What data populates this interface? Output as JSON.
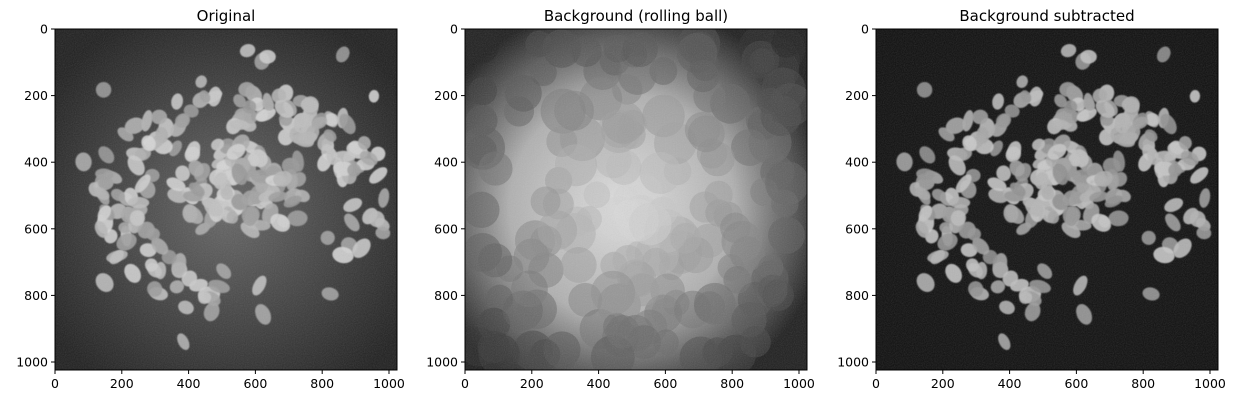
{
  "chart_data": [
    {
      "type": "heatmap",
      "title": "Original",
      "colormap": "gray",
      "xlim": [
        0,
        1024
      ],
      "ylim": [
        1024,
        0
      ],
      "xticks": [
        0,
        200,
        400,
        600,
        800,
        1000
      ],
      "yticks": [
        0,
        200,
        400,
        600,
        800,
        1000
      ],
      "background": {
        "center_level": 0.4,
        "edge_level": 0.12
      },
      "nuclei_level": 0.85
    },
    {
      "type": "heatmap",
      "title": "Background (rolling ball)",
      "colormap": "gray",
      "xlim": [
        0,
        1024
      ],
      "ylim": [
        1024,
        0
      ],
      "xticks": [
        0,
        200,
        400,
        600,
        800,
        1000
      ],
      "yticks": [
        0,
        200,
        400,
        600,
        800,
        1000
      ],
      "background": {
        "center_level": 0.88,
        "edge_level": 0.12
      },
      "nuclei_level": 0
    },
    {
      "type": "heatmap",
      "title": "Background subtracted",
      "colormap": "gray",
      "xlim": [
        0,
        1024
      ],
      "ylim": [
        1024,
        0
      ],
      "xticks": [
        0,
        200,
        400,
        600,
        800,
        1000
      ],
      "yticks": [
        0,
        200,
        400,
        600,
        800,
        1000
      ],
      "background": {
        "center_level": 0.07,
        "edge_level": 0.05
      },
      "nuclei_level": 0.8
    }
  ]
}
